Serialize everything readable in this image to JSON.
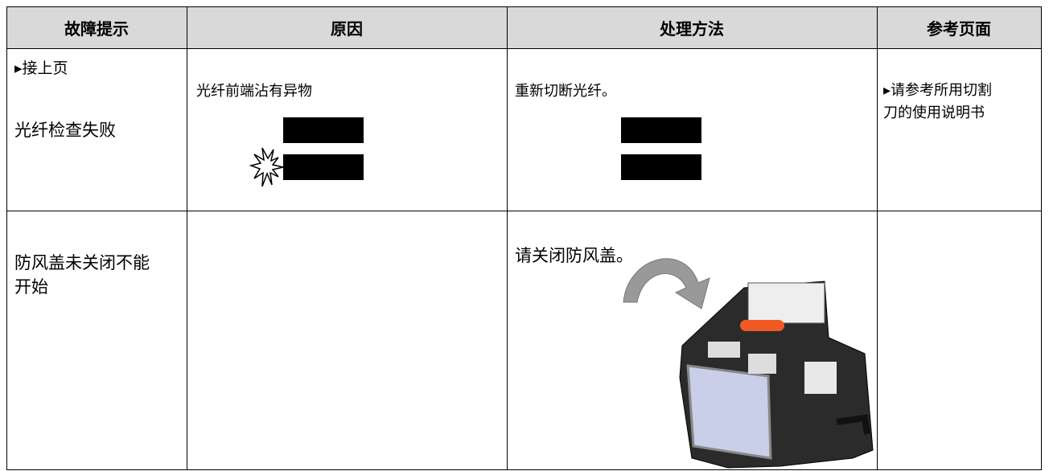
{
  "table": {
    "headers": [
      "故障提示",
      "原因",
      "处理方法",
      "参考页面"
    ],
    "rows": [
      {
        "continued": "▸接上页",
        "problem": "光纤检查失败",
        "cause": "光纤前端沾有异物",
        "solution": "重新切断光纤。",
        "reference": [
          "▸请参考所用切割",
          "刀的使用说明书"
        ]
      },
      {
        "problem": [
          "防风盖未关闭不能",
          "开始"
        ],
        "solution": "请关闭防风盖。"
      }
    ]
  }
}
